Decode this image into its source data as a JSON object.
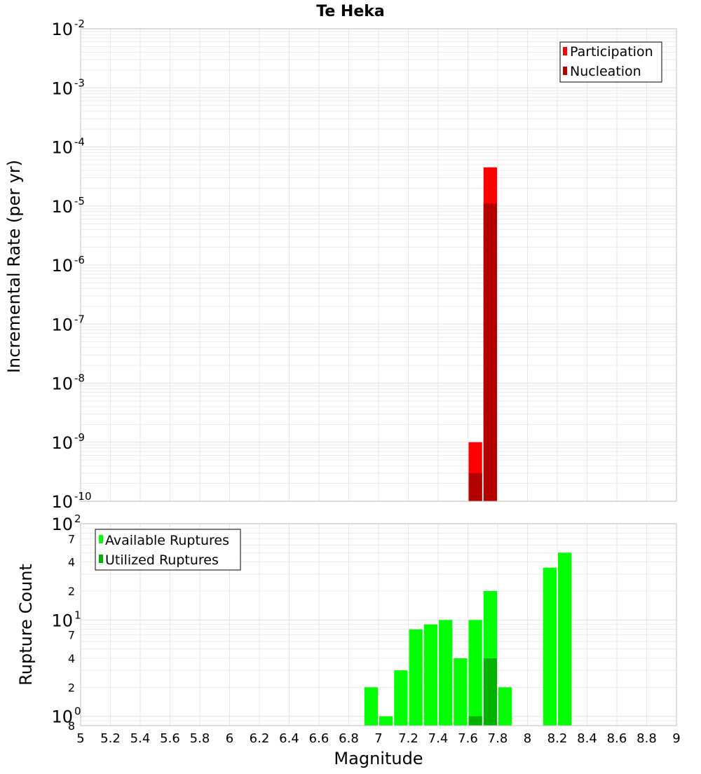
{
  "title": "Te Heka",
  "x_axis": {
    "label": "Magnitude",
    "range": [
      5,
      9
    ],
    "ticks": [
      "5",
      "5.2",
      "5.4",
      "5.6",
      "5.8",
      "6",
      "6.2",
      "6.4",
      "6.6",
      "6.8",
      "7",
      "7.2",
      "7.4",
      "7.6",
      "7.8",
      "8",
      "8.2",
      "8.4",
      "8.6",
      "8.8",
      "9"
    ]
  },
  "colors": {
    "participation": "#ff0000",
    "nucleation": "#b30000",
    "available": "#00ff00",
    "utilized": "#00b300",
    "grid": "#e6e6e6"
  },
  "chart_data": [
    {
      "type": "bar",
      "scale": "log",
      "ylabel": "Incremental Rate (per yr)",
      "ylim": [
        1e-10,
        0.01
      ],
      "y_ticks": [
        {
          "base": "10",
          "exp": "-2"
        },
        {
          "base": "10",
          "exp": "-3"
        },
        {
          "base": "10",
          "exp": "-4"
        },
        {
          "base": "10",
          "exp": "-5"
        },
        {
          "base": "10",
          "exp": "-6"
        },
        {
          "base": "10",
          "exp": "-7"
        },
        {
          "base": "10",
          "exp": "-8"
        },
        {
          "base": "10",
          "exp": "-9"
        },
        {
          "base": "10",
          "exp": "-10"
        }
      ],
      "legend": {
        "placement": "top-right",
        "entries": [
          "Participation",
          "Nucleation"
        ]
      },
      "series": [
        {
          "name": "Participation",
          "x": [
            7.65,
            7.75
          ],
          "values": [
            1e-09,
            4.5e-05
          ]
        },
        {
          "name": "Nucleation",
          "x": [
            7.65,
            7.75
          ],
          "values": [
            3e-10,
            1.1e-05
          ]
        }
      ]
    },
    {
      "type": "bar",
      "scale": "log",
      "ylabel": "Rupture Count",
      "ylim": [
        0.8,
        100
      ],
      "y_ticks": [
        {
          "base": "10",
          "exp": "2",
          "value": 100
        },
        {
          "label": "7",
          "value": 70
        },
        {
          "label": "4",
          "value": 40
        },
        {
          "label": "2",
          "value": 20
        },
        {
          "base": "10",
          "exp": "1",
          "value": 10
        },
        {
          "label": "7",
          "value": 7
        },
        {
          "label": "4",
          "value": 4
        },
        {
          "label": "2",
          "value": 2
        },
        {
          "base": "10",
          "exp": "0",
          "value": 1
        },
        {
          "label": "8",
          "value": 0.8
        }
      ],
      "legend": {
        "placement": "top-left",
        "entries": [
          "Available Ruptures",
          "Utilized Ruptures"
        ]
      },
      "series": [
        {
          "name": "Available Ruptures",
          "x": [
            6.95,
            7.05,
            7.15,
            7.25,
            7.35,
            7.45,
            7.55,
            7.65,
            7.75,
            7.85,
            8.15,
            8.25
          ],
          "values": [
            2,
            1,
            3,
            8,
            9,
            10,
            4,
            10,
            20,
            2,
            35,
            50
          ]
        },
        {
          "name": "Utilized Ruptures",
          "x": [
            7.65,
            7.75
          ],
          "values": [
            1,
            4
          ]
        }
      ]
    }
  ]
}
